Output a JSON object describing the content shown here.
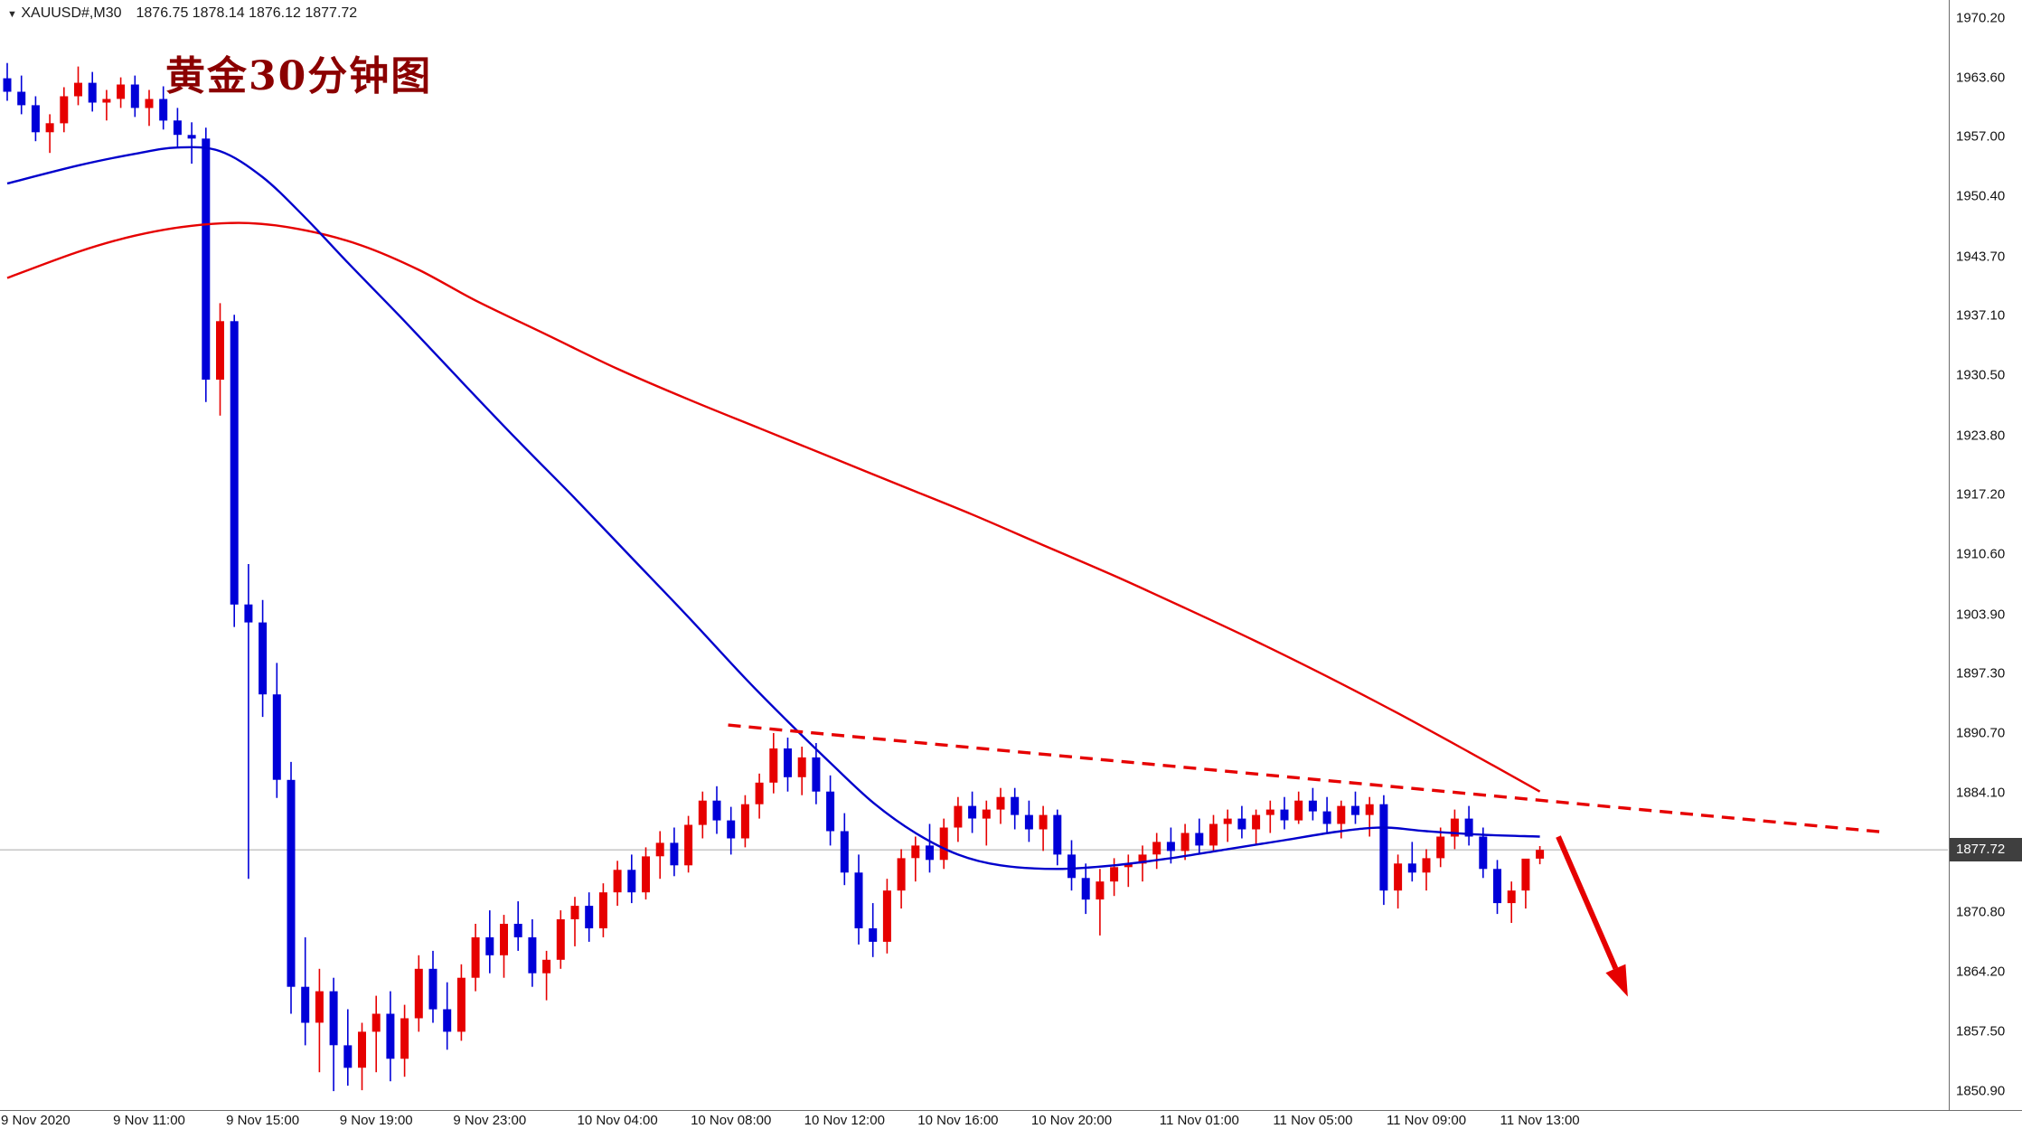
{
  "window": {
    "dropdown_icon": "▼",
    "symbol_info": "XAUUSD#,M30",
    "ohlc_readout": "1876.75 1878.14 1876.12 1877.72"
  },
  "title_annotation": "黄金30分钟图",
  "price_badge": "1877.72",
  "colors": {
    "background": "#ffffff",
    "bull": "#e60000",
    "bear": "#0000d8",
    "ma_blue": "#0000cc",
    "ma_red": "#e60000",
    "trendline": "#e60000",
    "arrow": "#e60000",
    "price_line": "#c0c0c0",
    "badge_bg": "#3f3f3f",
    "badge_text": "#ffffff",
    "axis_text": "#141414",
    "title": "#8b0000"
  },
  "chart_data": {
    "type": "candlestick",
    "symbol": "XAUUSD#",
    "timeframe": "M30",
    "last_bar": {
      "open": 1876.75,
      "high": 1878.14,
      "low": 1876.12,
      "close": 1877.72
    },
    "y_range": [
      1848.8,
      1972.2
    ],
    "grid": "off",
    "price_axis_labels": [
      "1970.20",
      "1963.60",
      "1957.00",
      "1950.40",
      "1943.70",
      "1937.10",
      "1930.50",
      "1923.80",
      "1917.20",
      "1910.60",
      "1903.90",
      "1897.30",
      "1890.70",
      "1884.10",
      "1870.80",
      "1864.20",
      "1857.50",
      "1850.90"
    ],
    "time_axis_labels": [
      {
        "text": "9 Nov 2020",
        "bar": 2
      },
      {
        "text": "9 Nov 11:00",
        "bar": 10
      },
      {
        "text": "9 Nov 15:00",
        "bar": 18
      },
      {
        "text": "9 Nov 19:00",
        "bar": 26
      },
      {
        "text": "9 Nov 23:00",
        "bar": 34
      },
      {
        "text": "10 Nov 04:00",
        "bar": 43
      },
      {
        "text": "10 Nov 08:00",
        "bar": 51
      },
      {
        "text": "10 Nov 12:00",
        "bar": 59
      },
      {
        "text": "10 Nov 16:00",
        "bar": 67
      },
      {
        "text": "10 Nov 20:00",
        "bar": 75
      },
      {
        "text": "11 Nov 01:00",
        "bar": 84
      },
      {
        "text": "11 Nov 05:00",
        "bar": 92
      },
      {
        "text": "11 Nov 09:00",
        "bar": 100
      },
      {
        "text": "11 Nov 13:00",
        "bar": 108
      }
    ],
    "candles": [
      [
        1963.5,
        1965.2,
        1961.0,
        1962.0
      ],
      [
        1962.0,
        1963.8,
        1959.5,
        1960.5
      ],
      [
        1960.5,
        1961.5,
        1956.5,
        1957.5
      ],
      [
        1957.5,
        1959.5,
        1955.2,
        1958.5
      ],
      [
        1958.5,
        1962.5,
        1957.5,
        1961.5
      ],
      [
        1961.5,
        1964.8,
        1960.5,
        1963.0
      ],
      [
        1963.0,
        1964.2,
        1959.8,
        1960.8
      ],
      [
        1960.8,
        1962.2,
        1958.8,
        1961.2
      ],
      [
        1961.2,
        1963.6,
        1960.2,
        1962.8
      ],
      [
        1962.8,
        1963.8,
        1959.2,
        1960.2
      ],
      [
        1960.2,
        1962.2,
        1958.2,
        1961.2
      ],
      [
        1961.2,
        1962.6,
        1957.8,
        1958.8
      ],
      [
        1958.8,
        1960.2,
        1955.8,
        1957.2
      ],
      [
        1957.2,
        1958.6,
        1954.0,
        1956.8
      ],
      [
        1956.8,
        1958.0,
        1927.5,
        1930.0
      ],
      [
        1930.0,
        1938.5,
        1926.0,
        1936.5
      ],
      [
        1936.5,
        1937.2,
        1902.5,
        1905.0
      ],
      [
        1905.0,
        1909.5,
        1874.5,
        1903.0
      ],
      [
        1903.0,
        1905.5,
        1892.5,
        1895.0
      ],
      [
        1895.0,
        1898.5,
        1883.5,
        1885.5
      ],
      [
        1885.5,
        1887.5,
        1859.5,
        1862.5
      ],
      [
        1862.5,
        1868.0,
        1856.0,
        1858.5
      ],
      [
        1858.5,
        1864.5,
        1853.0,
        1862.0
      ],
      [
        1862.0,
        1863.5,
        1850.9,
        1856.0
      ],
      [
        1856.0,
        1860.0,
        1851.5,
        1853.5
      ],
      [
        1853.5,
        1858.5,
        1851.0,
        1857.5
      ],
      [
        1857.5,
        1861.5,
        1853.0,
        1859.5
      ],
      [
        1859.5,
        1862.0,
        1852.0,
        1854.5
      ],
      [
        1854.5,
        1860.5,
        1852.5,
        1859.0
      ],
      [
        1859.0,
        1866.0,
        1857.5,
        1864.5
      ],
      [
        1864.5,
        1866.5,
        1858.5,
        1860.0
      ],
      [
        1860.0,
        1863.0,
        1855.5,
        1857.5
      ],
      [
        1857.5,
        1865.0,
        1856.5,
        1863.5
      ],
      [
        1863.5,
        1869.5,
        1862.0,
        1868.0
      ],
      [
        1868.0,
        1871.0,
        1864.0,
        1866.0
      ],
      [
        1866.0,
        1870.5,
        1863.5,
        1869.5
      ],
      [
        1869.5,
        1872.0,
        1866.5,
        1868.0
      ],
      [
        1868.0,
        1870.0,
        1862.5,
        1864.0
      ],
      [
        1864.0,
        1866.5,
        1861.0,
        1865.5
      ],
      [
        1865.5,
        1871.0,
        1864.5,
        1870.0
      ],
      [
        1870.0,
        1872.5,
        1867.0,
        1871.5
      ],
      [
        1871.5,
        1873.0,
        1867.5,
        1869.0
      ],
      [
        1869.0,
        1874.0,
        1868.0,
        1873.0
      ],
      [
        1873.0,
        1876.5,
        1871.5,
        1875.5
      ],
      [
        1875.5,
        1877.2,
        1871.8,
        1873.0
      ],
      [
        1873.0,
        1878.0,
        1872.2,
        1877.0
      ],
      [
        1877.0,
        1879.8,
        1874.5,
        1878.5
      ],
      [
        1878.5,
        1880.2,
        1874.8,
        1876.0
      ],
      [
        1876.0,
        1881.5,
        1875.2,
        1880.5
      ],
      [
        1880.5,
        1884.2,
        1879.0,
        1883.2
      ],
      [
        1883.2,
        1884.8,
        1879.5,
        1881.0
      ],
      [
        1881.0,
        1882.5,
        1877.2,
        1879.0
      ],
      [
        1879.0,
        1883.8,
        1878.0,
        1882.8
      ],
      [
        1882.8,
        1886.2,
        1881.2,
        1885.2
      ],
      [
        1885.2,
        1890.7,
        1884.0,
        1889.0
      ],
      [
        1889.0,
        1890.2,
        1884.2,
        1885.8
      ],
      [
        1885.8,
        1889.2,
        1883.8,
        1888.0
      ],
      [
        1888.0,
        1889.6,
        1882.8,
        1884.2
      ],
      [
        1884.2,
        1886.0,
        1878.2,
        1879.8
      ],
      [
        1879.8,
        1881.8,
        1873.8,
        1875.2
      ],
      [
        1875.2,
        1877.2,
        1867.2,
        1869.0
      ],
      [
        1869.0,
        1871.8,
        1865.8,
        1867.5
      ],
      [
        1867.5,
        1874.5,
        1866.2,
        1873.2
      ],
      [
        1873.2,
        1877.8,
        1871.2,
        1876.8
      ],
      [
        1876.8,
        1879.2,
        1874.2,
        1878.2
      ],
      [
        1878.2,
        1880.6,
        1875.2,
        1876.6
      ],
      [
        1876.6,
        1881.2,
        1875.6,
        1880.2
      ],
      [
        1880.2,
        1883.6,
        1878.6,
        1882.6
      ],
      [
        1882.6,
        1884.2,
        1879.6,
        1881.2
      ],
      [
        1881.2,
        1883.2,
        1878.2,
        1882.2
      ],
      [
        1882.2,
        1884.6,
        1880.6,
        1883.6
      ],
      [
        1883.6,
        1884.6,
        1880.0,
        1881.6
      ],
      [
        1881.6,
        1883.2,
        1878.6,
        1880.0
      ],
      [
        1880.0,
        1882.6,
        1877.6,
        1881.6
      ],
      [
        1881.6,
        1882.2,
        1876.0,
        1877.2
      ],
      [
        1877.2,
        1878.8,
        1873.2,
        1874.6
      ],
      [
        1874.6,
        1876.2,
        1870.6,
        1872.2
      ],
      [
        1872.2,
        1875.6,
        1868.2,
        1874.2
      ],
      [
        1874.2,
        1876.8,
        1872.6,
        1875.8
      ],
      [
        1875.8,
        1877.2,
        1873.6,
        1876.2
      ],
      [
        1876.2,
        1878.2,
        1874.2,
        1877.2
      ],
      [
        1877.2,
        1879.6,
        1875.6,
        1878.6
      ],
      [
        1878.6,
        1880.2,
        1876.2,
        1877.6
      ],
      [
        1877.6,
        1880.6,
        1876.6,
        1879.6
      ],
      [
        1879.6,
        1881.2,
        1877.2,
        1878.2
      ],
      [
        1878.2,
        1881.6,
        1877.6,
        1880.6
      ],
      [
        1880.6,
        1882.2,
        1878.6,
        1881.2
      ],
      [
        1881.2,
        1882.6,
        1879.0,
        1880.0
      ],
      [
        1880.0,
        1882.2,
        1878.2,
        1881.6
      ],
      [
        1881.6,
        1883.2,
        1879.6,
        1882.2
      ],
      [
        1882.2,
        1883.6,
        1880.0,
        1881.0
      ],
      [
        1881.0,
        1884.2,
        1880.6,
        1883.2
      ],
      [
        1883.2,
        1884.6,
        1881.0,
        1882.0
      ],
      [
        1882.0,
        1883.6,
        1879.6,
        1880.6
      ],
      [
        1880.6,
        1883.2,
        1879.0,
        1882.6
      ],
      [
        1882.6,
        1884.2,
        1880.6,
        1881.6
      ],
      [
        1881.6,
        1883.6,
        1879.2,
        1882.8
      ],
      [
        1882.8,
        1883.8,
        1871.6,
        1873.2
      ],
      [
        1873.2,
        1877.2,
        1871.2,
        1876.2
      ],
      [
        1876.2,
        1878.6,
        1874.2,
        1875.2
      ],
      [
        1875.2,
        1877.8,
        1873.2,
        1876.8
      ],
      [
        1876.8,
        1880.2,
        1875.8,
        1879.2
      ],
      [
        1879.2,
        1882.2,
        1877.8,
        1881.2
      ],
      [
        1881.2,
        1882.6,
        1878.2,
        1879.2
      ],
      [
        1879.2,
        1880.2,
        1874.6,
        1875.6
      ],
      [
        1875.6,
        1876.6,
        1870.6,
        1871.8
      ],
      [
        1871.8,
        1874.2,
        1869.6,
        1873.2
      ],
      [
        1873.2,
        1876.4,
        1871.2,
        1876.75
      ],
      [
        1876.75,
        1878.14,
        1876.12,
        1877.72
      ]
    ],
    "ma_blue": [
      [
        0,
        1951.8
      ],
      [
        5,
        1953.8
      ],
      [
        9,
        1955.1
      ],
      [
        12,
        1955.8
      ],
      [
        15,
        1955.4
      ],
      [
        18,
        1952.5
      ],
      [
        21,
        1948.0
      ],
      [
        24,
        1943.0
      ],
      [
        28,
        1936.5
      ],
      [
        32,
        1929.8
      ],
      [
        36,
        1923.2
      ],
      [
        40,
        1916.8
      ],
      [
        44,
        1910.2
      ],
      [
        48,
        1903.6
      ],
      [
        52,
        1896.8
      ],
      [
        55,
        1892.0
      ],
      [
        58,
        1887.4
      ],
      [
        61,
        1883.0
      ],
      [
        64,
        1879.6
      ],
      [
        67,
        1877.2
      ],
      [
        70,
        1876.0
      ],
      [
        74,
        1875.6
      ],
      [
        78,
        1876.0
      ],
      [
        82,
        1876.8
      ],
      [
        86,
        1877.8
      ],
      [
        90,
        1878.8
      ],
      [
        94,
        1879.8
      ],
      [
        97,
        1880.2
      ],
      [
        100,
        1879.8
      ],
      [
        104,
        1879.4
      ],
      [
        108,
        1879.2
      ]
    ],
    "ma_red": [
      [
        0,
        1941.3
      ],
      [
        5,
        1944.2
      ],
      [
        9,
        1946.0
      ],
      [
        13,
        1947.1
      ],
      [
        17,
        1947.4
      ],
      [
        21,
        1946.6
      ],
      [
        25,
        1944.9
      ],
      [
        29,
        1942.2
      ],
      [
        33,
        1938.8
      ],
      [
        38,
        1935.0
      ],
      [
        43,
        1931.2
      ],
      [
        48,
        1927.8
      ],
      [
        53,
        1924.6
      ],
      [
        58,
        1921.4
      ],
      [
        63,
        1918.2
      ],
      [
        68,
        1915.0
      ],
      [
        73,
        1911.6
      ],
      [
        78,
        1908.2
      ],
      [
        83,
        1904.6
      ],
      [
        88,
        1900.9
      ],
      [
        93,
        1897.0
      ],
      [
        98,
        1892.9
      ],
      [
        103,
        1888.6
      ],
      [
        108,
        1884.2
      ]
    ],
    "trendline": {
      "style": "dashed",
      "from": [
        50.8,
        1891.6
      ],
      "to": [
        132.2,
        1879.7
      ]
    },
    "arrow": {
      "from": [
        109.3,
        1879.2
      ],
      "to": [
        114.2,
        1861.4
      ]
    }
  }
}
